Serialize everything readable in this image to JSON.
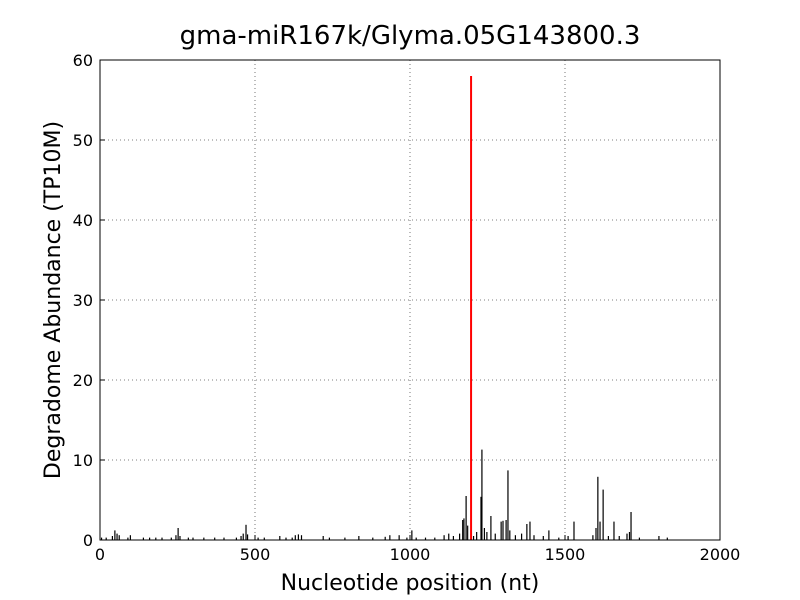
{
  "chart_data": {
    "type": "spike",
    "title": "gma-miR167k/Glyma.05G143800.3",
    "x_label": "Nucleotide position (nt)",
    "y_label": "Degradome Abundance (TP10M)",
    "xlim": [
      0,
      2000
    ],
    "xticks": [
      0,
      500,
      1000,
      1500,
      2000
    ],
    "ylim": [
      0,
      60
    ],
    "yticks": [
      0,
      10,
      20,
      30,
      40,
      50,
      60
    ],
    "grid": true,
    "series": [
      {
        "color": "#000000",
        "x": [
          5,
          20,
          40,
          48,
          55,
          62,
          90,
          98,
          140,
          160,
          180,
          200,
          230,
          245,
          252,
          258,
          285,
          300,
          335,
          370,
          400,
          440,
          455,
          462,
          471,
          476,
          510,
          530,
          580,
          600,
          620,
          630,
          640,
          650,
          720,
          740,
          790,
          835,
          880,
          920,
          935,
          965,
          990,
          1006,
          1020,
          1050,
          1080,
          1110,
          1125,
          1140,
          1160,
          1170,
          1174,
          1181,
          1186,
          1205,
          1215,
          1229,
          1232,
          1240,
          1248,
          1261,
          1275,
          1294,
          1300,
          1310,
          1316,
          1322,
          1340,
          1360,
          1377,
          1387,
          1400,
          1430,
          1448,
          1480,
          1510,
          1529,
          1590,
          1600,
          1606,
          1613,
          1623,
          1640,
          1658,
          1675,
          1700,
          1708,
          1713,
          1740,
          1803,
          1830
        ],
        "values": [
          0.3,
          0.3,
          0.5,
          1.2,
          0.8,
          0.6,
          0.3,
          0.6,
          0.3,
          0.3,
          0.3,
          0.3,
          0.3,
          0.6,
          1.5,
          0.5,
          0.3,
          0.3,
          0.3,
          0.3,
          0.3,
          0.3,
          0.5,
          0.8,
          1.9,
          0.7,
          0.3,
          0.3,
          0.5,
          0.3,
          0.3,
          0.6,
          0.7,
          0.6,
          0.5,
          0.3,
          0.3,
          0.5,
          0.3,
          0.4,
          0.6,
          0.6,
          0.3,
          1.2,
          0.3,
          0.3,
          0.3,
          0.6,
          0.8,
          0.5,
          0.8,
          2.5,
          2.7,
          5.5,
          1.8,
          0.5,
          1.0,
          5.4,
          11.3,
          1.5,
          1.0,
          3.0,
          0.8,
          2.3,
          2.4,
          2.5,
          8.7,
          1.2,
          0.6,
          0.8,
          2.0,
          2.3,
          0.6,
          0.5,
          1.2,
          0.3,
          0.5,
          2.3,
          0.6,
          1.5,
          7.9,
          2.3,
          6.3,
          0.5,
          2.3,
          0.5,
          0.8,
          1.0,
          3.5,
          0.3,
          0.5,
          0.3
        ]
      },
      {
        "color": "#ff0000",
        "x": [
          1197
        ],
        "values": [
          58
        ]
      }
    ]
  }
}
